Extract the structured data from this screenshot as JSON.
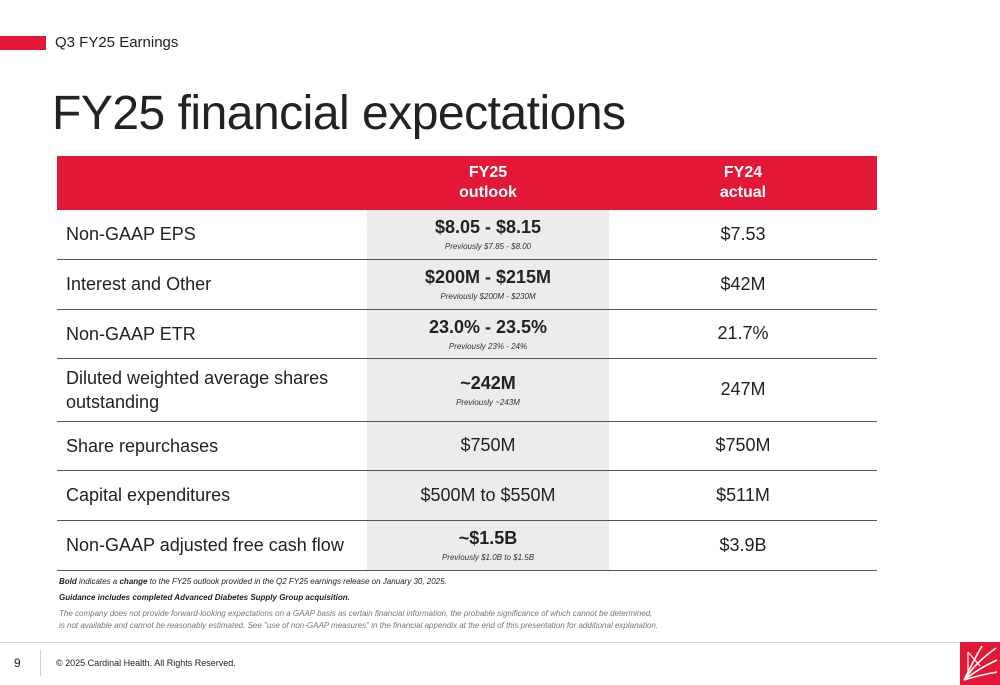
{
  "header": {
    "section_label": "Q3 FY25 Earnings",
    "title": "FY25 financial expectations"
  },
  "colors": {
    "brand_red": "#e31837",
    "outlook_column_bg": "#ececec"
  },
  "table": {
    "columns": [
      {
        "line1": "FY25",
        "line2": "outlook"
      },
      {
        "line1": "FY24",
        "line2": "actual"
      }
    ],
    "rows": [
      {
        "label": "Non-GAAP EPS",
        "outlook": "$8.05 - $8.15",
        "outlook_bold": true,
        "previous": "Previously $7.85 - $8.00",
        "actual": "$7.53"
      },
      {
        "label": "Interest and Other",
        "outlook": "$200M - $215M",
        "outlook_bold": true,
        "previous": "Previously $200M - $230M",
        "actual": "$42M"
      },
      {
        "label": "Non-GAAP ETR",
        "outlook": "23.0% - 23.5%",
        "outlook_bold": true,
        "previous": "Previously 23% - 24%",
        "actual": "21.7%"
      },
      {
        "label": "Diluted weighted average shares outstanding",
        "outlook": "~242M",
        "outlook_bold": true,
        "previous": "Previously ~243M",
        "actual": "247M"
      },
      {
        "label": "Share repurchases",
        "outlook": "$750M",
        "outlook_bold": false,
        "previous": "",
        "actual": "$750M"
      },
      {
        "label": "Capital expenditures",
        "outlook": "$500M to $550M",
        "outlook_bold": false,
        "previous": "",
        "actual": "$511M"
      },
      {
        "label": "Non-GAAP adjusted free cash flow",
        "outlook": "~$1.5B",
        "outlook_bold": true,
        "previous": "Previously $1.0B to $1.5B",
        "actual": "$3.9B"
      }
    ]
  },
  "footnotes": {
    "bold_word": "Bold",
    "text_a": " indicates a ",
    "change_word": "change",
    "text_b": " to the FY25 outlook provided in the Q2 FY25 earnings release on January 30, 2025.",
    "guidance": "Guidance includes completed Advanced Diabetes Supply Group acquisition.",
    "disclaimer_1": "The company does not provide forward-looking expectations on a GAAP basis as certain financial information, the probable significance of which cannot be determined,",
    "disclaimer_2": "is not available and cannot be reasonably estimated. See \"use of non-GAAP measures\" in the financial appendix at the end of this presentation for additional explanation."
  },
  "footer": {
    "page_number": "9",
    "copyright": "© 2025 Cardinal Health. All Rights Reserved."
  },
  "icons": {
    "logo": "cardinal-health-logo-icon"
  }
}
